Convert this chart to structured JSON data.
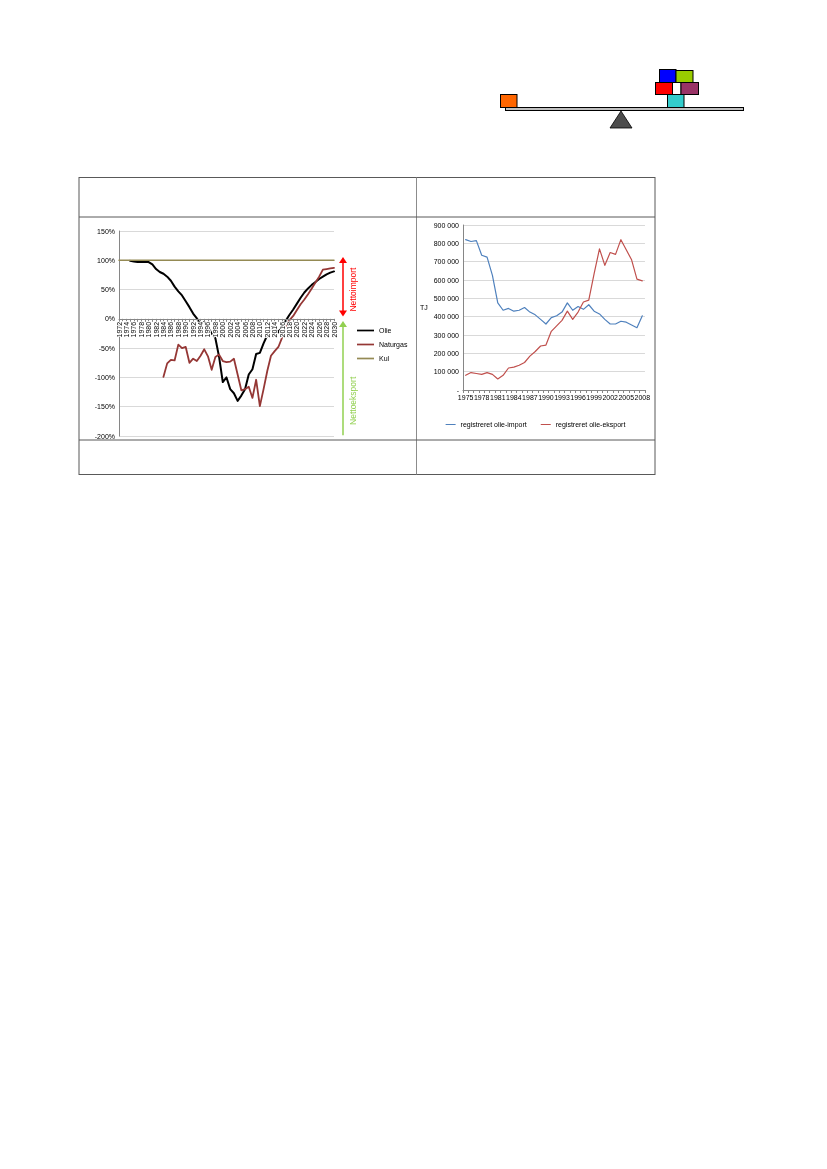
{
  "chart_data": [
    {
      "type": "line",
      "categories": [
        "1972",
        null,
        "1974",
        null,
        "1976",
        null,
        "1978",
        null,
        "1980",
        null,
        "1982",
        null,
        "1984",
        null,
        "1986",
        null,
        "1988",
        null,
        "1990",
        null,
        "1992",
        null,
        "1994",
        null,
        "1996",
        null,
        "1998",
        null,
        "2000",
        null,
        "2002",
        null,
        "2004",
        null,
        "2006",
        null,
        "2008",
        null,
        "2010",
        null,
        "2012",
        null,
        "2014",
        null,
        "2016",
        null,
        "2018",
        null,
        "2020",
        null,
        "2022",
        null,
        "2024",
        null,
        "2026",
        null,
        "2028",
        null,
        "2030"
      ],
      "series": [
        {
          "name": "Olie",
          "color": "#000000",
          "values": [
            null,
            null,
            null,
            99,
            98,
            97,
            97,
            97,
            97,
            93,
            85,
            80,
            77,
            72,
            65,
            55,
            47,
            40,
            30,
            20,
            9,
            1,
            -10,
            -5,
            -14,
            -25,
            -33,
            -65,
            -108,
            -100,
            -120,
            -127,
            -140,
            -131,
            -120,
            -95,
            -86,
            -60,
            -58,
            -42,
            -28,
            -14,
            -15,
            -23,
            -12,
            -3,
            7,
            16,
            26,
            36,
            45,
            52,
            58,
            63,
            68,
            72,
            76,
            79,
            81
          ]
        },
        {
          "name": "Naturgas",
          "color": "#953735",
          "values": [
            null,
            null,
            null,
            null,
            null,
            null,
            null,
            null,
            null,
            null,
            null,
            null,
            -99,
            -76,
            -70,
            -71,
            -44,
            -50,
            -48,
            -75,
            -68,
            -72,
            -63,
            -52,
            -64,
            -87,
            -65,
            -61,
            -72,
            -74,
            -73,
            -68,
            -95,
            -122,
            -120,
            -116,
            -135,
            -104,
            -149,
            -120,
            -89,
            -63,
            -55,
            -48,
            -32,
            -13,
            -2,
            5,
            15,
            25,
            33,
            42,
            52,
            62,
            72,
            84,
            85,
            86,
            87
          ]
        },
        {
          "name": "Kul",
          "color": "#948a54",
          "values": [
            100,
            100,
            100,
            100,
            100,
            100,
            100,
            100,
            100,
            100,
            100,
            100,
            100,
            100,
            100,
            100,
            100,
            100,
            100,
            100,
            100,
            100,
            100,
            100,
            100,
            100,
            100,
            100,
            100,
            100,
            100,
            100,
            100,
            100,
            100,
            100,
            100,
            100,
            100,
            100,
            100,
            100,
            100,
            100,
            100,
            100,
            100,
            100,
            100,
            100,
            100,
            100,
            100,
            100,
            100,
            100,
            100,
            100,
            100
          ]
        }
      ],
      "ylim": [
        -200,
        150
      ],
      "yticks": [
        {
          "value": -200,
          "label": "-200%"
        },
        {
          "value": -150,
          "label": "-150%"
        },
        {
          "value": -100,
          "label": "-100%"
        },
        {
          "value": -50,
          "label": "-50%"
        },
        {
          "value": 0,
          "label": "0%"
        },
        {
          "value": 50,
          "label": "50%"
        },
        {
          "value": 100,
          "label": "100%"
        },
        {
          "value": 150,
          "label": "150%"
        }
      ],
      "grid": "y",
      "legend": "right",
      "marker": "none",
      "annotations": [
        "Nettoimport",
        "Nettoeksport"
      ]
    },
    {
      "type": "line",
      "ylabel": "TJ",
      "categories": [
        "1975",
        null,
        null,
        "1978",
        null,
        null,
        "1981",
        null,
        null,
        "1984",
        null,
        null,
        "1987",
        null,
        null,
        "1990",
        null,
        null,
        "1993",
        null,
        null,
        "1996",
        null,
        null,
        "1999",
        null,
        null,
        "2002",
        null,
        null,
        "2005",
        null,
        null,
        "2008"
      ],
      "series": [
        {
          "name": "registreret olie-import",
          "color": "#4f81bd",
          "values": [
            820000,
            810000,
            815000,
            735000,
            725000,
            625000,
            475000,
            435000,
            445000,
            430000,
            435000,
            450000,
            425000,
            410000,
            385000,
            360000,
            395000,
            405000,
            425000,
            475000,
            435000,
            455000,
            440000,
            465000,
            430000,
            415000,
            385000,
            360000,
            360000,
            375000,
            370000,
            355000,
            340000,
            405000
          ]
        },
        {
          "name": "registreret olie-eksport",
          "color": "#c0504d",
          "values": [
            80000,
            95000,
            90000,
            85000,
            95000,
            85000,
            60000,
            80000,
            120000,
            125000,
            135000,
            150000,
            185000,
            210000,
            240000,
            245000,
            320000,
            350000,
            380000,
            430000,
            385000,
            425000,
            480000,
            490000,
            635000,
            770000,
            680000,
            750000,
            740000,
            820000,
            765000,
            710000,
            605000,
            595000
          ]
        }
      ],
      "ylim": [
        0,
        900000
      ],
      "yticks": [
        {
          "value": 0,
          "label": "-"
        },
        {
          "value": 100000,
          "label": "100 000"
        },
        {
          "value": 200000,
          "label": "200 000"
        },
        {
          "value": 300000,
          "label": "300 000"
        },
        {
          "value": 400000,
          "label": "400 000"
        },
        {
          "value": 500000,
          "label": "500 000"
        },
        {
          "value": 600000,
          "label": "600 000"
        },
        {
          "value": 700000,
          "label": "700 000"
        },
        {
          "value": 800000,
          "label": "800 000"
        },
        {
          "value": 900000,
          "label": "900 000"
        }
      ],
      "grid": "y",
      "legend": "bottom",
      "marker": "none"
    }
  ]
}
